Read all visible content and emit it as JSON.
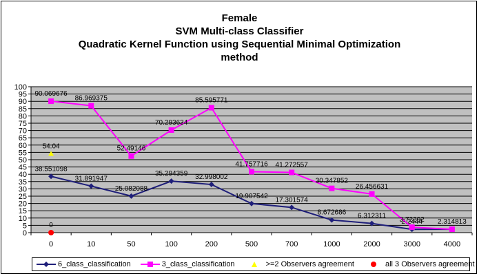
{
  "chart_data": {
    "type": "line",
    "title_lines": [
      "Female",
      "SVM Multi-class Classifier",
      "Quadratic Kernel Function using Sequential Minimal Optimization",
      "method"
    ],
    "categories": [
      "0",
      "10",
      "50",
      "100",
      "200",
      "500",
      "700",
      "1000",
      "2000",
      "3000",
      "4000"
    ],
    "ylim": [
      0,
      100
    ],
    "yticks": [
      0,
      5,
      10,
      15,
      20,
      25,
      30,
      35,
      40,
      45,
      50,
      55,
      60,
      65,
      70,
      75,
      80,
      85,
      90,
      95,
      100
    ],
    "grid": "horizontal",
    "legend_position": "bottom",
    "series": [
      {
        "name": "6_class_classification",
        "color": "#1f1f7a",
        "marker": "diamond",
        "values": [
          38.551098,
          31.891947,
          25.082088,
          35.294359,
          32.998002,
          19.907542,
          17.301574,
          8.672686,
          6.312311,
          2.2444,
          2.314813
        ],
        "labels": [
          "38.551098",
          "31.891947",
          "25.082088",
          "35.294359",
          "32.998002",
          "19.907542",
          "17.301574",
          "8.672686",
          "6.312311",
          "2.2444",
          "2.314813"
        ]
      },
      {
        "name": "3_class_classification",
        "color": "#ff00ff",
        "marker": "square",
        "values": [
          90.069676,
          86.969375,
          52.49146,
          70.293634,
          85.595771,
          41.757716,
          41.272557,
          30.347852,
          26.456631,
          3.72292,
          2.314813
        ],
        "labels": [
          "90.069676",
          "86.969375",
          "52.49146",
          "70.293634",
          "85.595771",
          "41.757716",
          "41.272557",
          "30.347852",
          "26.456631",
          "3.72292",
          ""
        ]
      },
      {
        "name": ">=2 Observers agreement",
        "color": "#ffff00",
        "marker": "triangle",
        "values": [
          54.04,
          null,
          null,
          null,
          null,
          null,
          null,
          null,
          null,
          null,
          null
        ],
        "labels": [
          "54.04",
          "",
          "",
          "",
          "",
          "",
          "",
          "",
          "",
          "",
          ""
        ]
      },
      {
        "name": "all 3 Observers agreement",
        "color": "#ff0000",
        "marker": "circle",
        "values": [
          0,
          null,
          null,
          null,
          null,
          null,
          null,
          null,
          null,
          null,
          null
        ],
        "labels": [
          "0",
          "",
          "",
          "",
          "",
          "",
          "",
          "",
          "",
          "",
          ""
        ]
      }
    ]
  }
}
